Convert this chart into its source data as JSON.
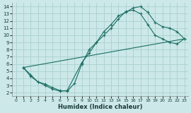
{
  "xlabel": "Humidex (Indice chaleur)",
  "bg_color": "#cce8e8",
  "grid_color": "#aacfcf",
  "line_color": "#1a6e64",
  "xlim": [
    -0.5,
    23.5
  ],
  "ylim": [
    1.5,
    14.5
  ],
  "xticks": [
    0,
    1,
    2,
    3,
    4,
    5,
    6,
    7,
    8,
    9,
    10,
    11,
    12,
    13,
    14,
    15,
    16,
    17,
    18,
    19,
    20,
    21,
    22,
    23
  ],
  "yticks": [
    2,
    3,
    4,
    5,
    6,
    7,
    8,
    9,
    10,
    11,
    12,
    13,
    14
  ],
  "line1_x": [
    1,
    2,
    3,
    4,
    5,
    6,
    7,
    8,
    9,
    10,
    11,
    12,
    13,
    14,
    15,
    16,
    17,
    18,
    19,
    20,
    21,
    22,
    23
  ],
  "line1_y": [
    5.5,
    4.5,
    3.5,
    3.2,
    2.7,
    2.3,
    2.2,
    3.3,
    6.0,
    8.0,
    9.0,
    10.5,
    11.5,
    12.7,
    13.2,
    13.8,
    14.0,
    13.2,
    11.8,
    11.2,
    11.0,
    10.5,
    9.5
  ],
  "line2_x": [
    1,
    2,
    3,
    4,
    5,
    6,
    7,
    9,
    10,
    11,
    12,
    13,
    14,
    15,
    16,
    17,
    18,
    19,
    20,
    21,
    22,
    23
  ],
  "line2_y": [
    5.5,
    4.3,
    3.5,
    3.0,
    2.5,
    2.2,
    2.3,
    6.2,
    7.5,
    9.0,
    10.0,
    11.0,
    12.3,
    13.3,
    13.5,
    13.0,
    11.5,
    10.0,
    9.5,
    9.0,
    8.8,
    9.5
  ],
  "line3_x": [
    1,
    23
  ],
  "line3_y": [
    5.5,
    9.5
  ]
}
